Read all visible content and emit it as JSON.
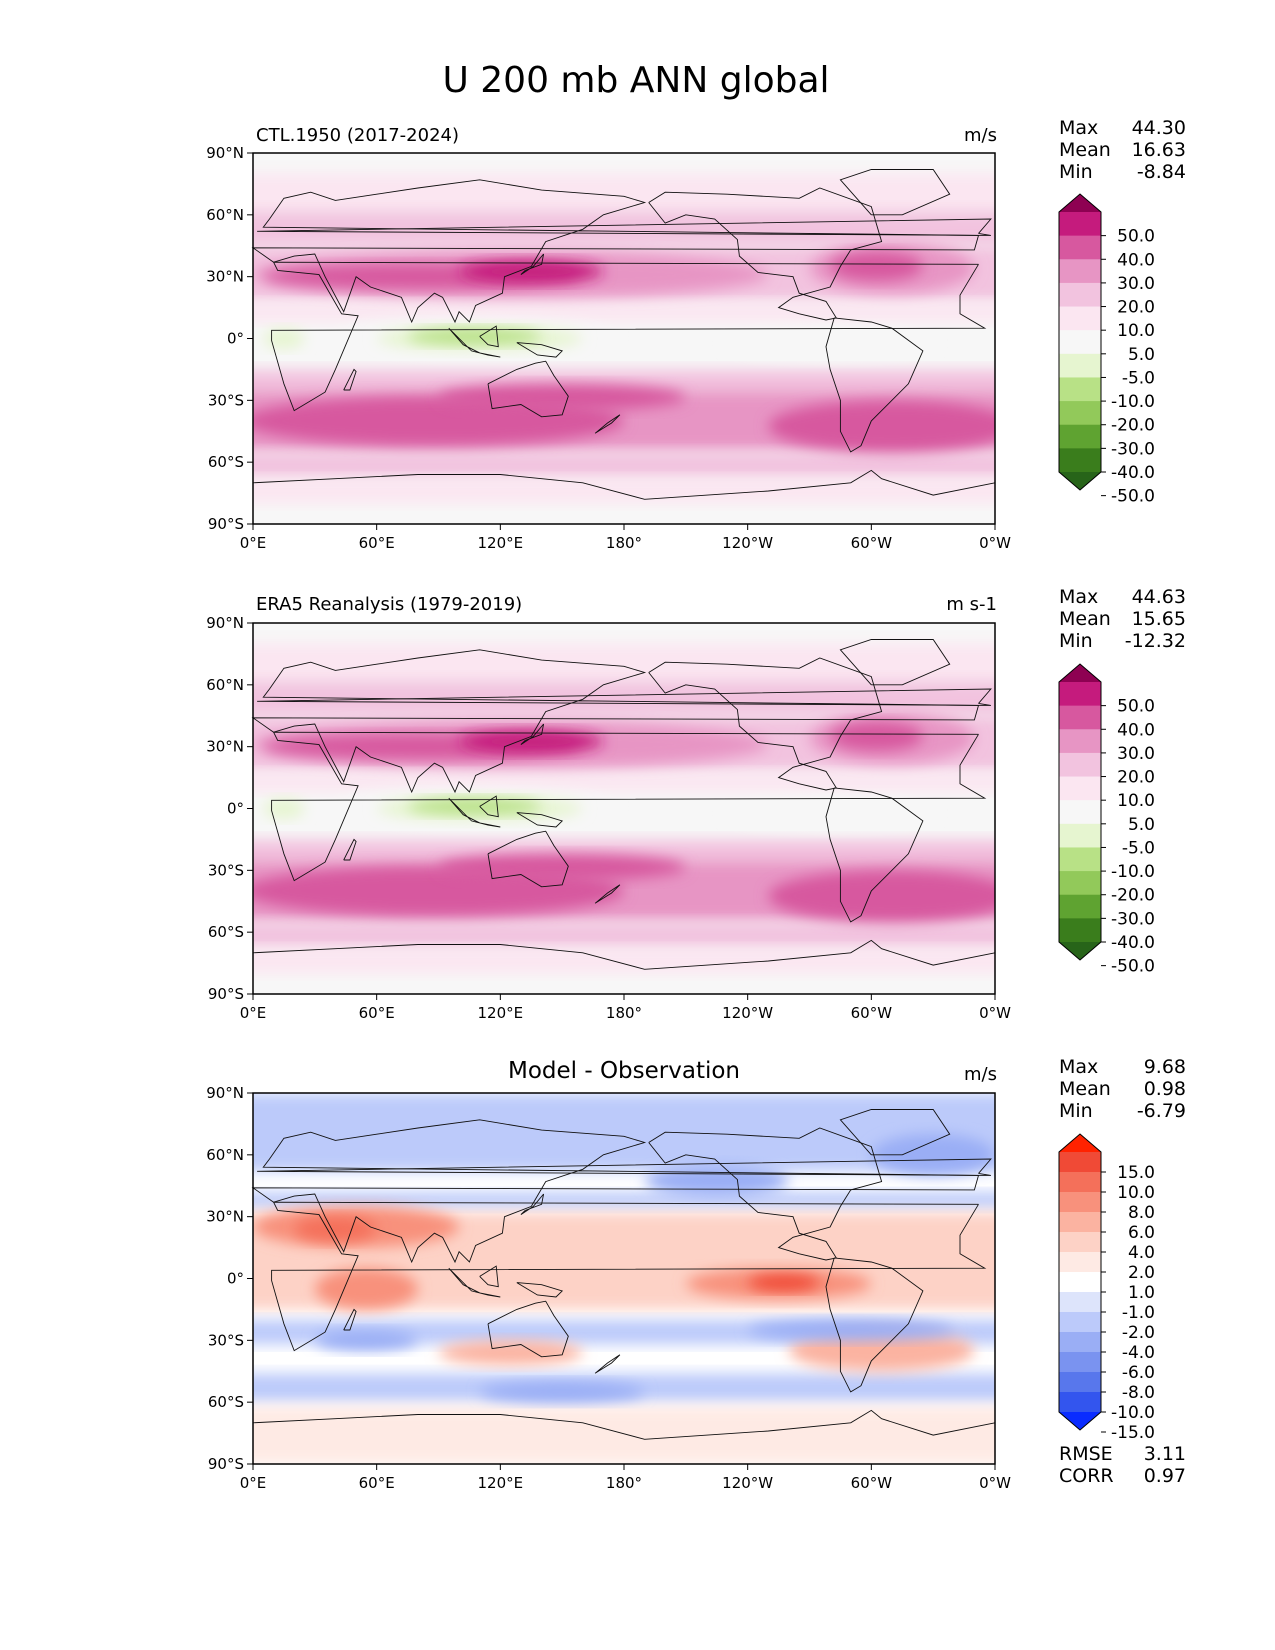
{
  "figure": {
    "title": "U 200 mb ANN global"
  },
  "x_ticks": [
    "0°E",
    "60°E",
    "120°E",
    "180°",
    "120°W",
    "60°W",
    "0°W"
  ],
  "y_ticks": [
    "90°N",
    "60°N",
    "30°N",
    "0°",
    "30°S",
    "60°S",
    "90°S"
  ],
  "panels": [
    {
      "title_left": "CTL.1950 (2017-2024)",
      "title_center": "",
      "units": "m/s",
      "stats": {
        "labels": [
          "Max",
          "Mean",
          "Min"
        ],
        "values": [
          "44.30",
          "16.63",
          "-8.84"
        ]
      },
      "colorbar": {
        "levels": [
          "50.0",
          "40.0",
          "30.0",
          "20.0",
          "10.0",
          "5.0",
          "-5.0",
          "-10.0",
          "-20.0",
          "-30.0",
          "-40.0",
          "-50.0"
        ],
        "colors": [
          "#8e0152",
          "#c51b7d",
          "#d7589f",
          "#e795c4",
          "#f2c3df",
          "#fbe6f1",
          "#f7f7f7",
          "#e6f5d0",
          "#b8e186",
          "#92c95a",
          "#5fa331",
          "#3a7d1c",
          "#276419"
        ]
      },
      "field": "ctl"
    },
    {
      "title_left": "ERA5 Reanalysis (1979-2019)",
      "title_center": "",
      "units": "m s-1",
      "stats": {
        "labels": [
          "Max",
          "Mean",
          "Min"
        ],
        "values": [
          "44.63",
          "15.65",
          "-12.32"
        ]
      },
      "colorbar": {
        "levels": [
          "50.0",
          "40.0",
          "30.0",
          "20.0",
          "10.0",
          "5.0",
          "-5.0",
          "-10.0",
          "-20.0",
          "-30.0",
          "-40.0",
          "-50.0"
        ],
        "colors": [
          "#8e0152",
          "#c51b7d",
          "#d7589f",
          "#e795c4",
          "#f2c3df",
          "#fbe6f1",
          "#f7f7f7",
          "#e6f5d0",
          "#b8e186",
          "#92c95a",
          "#5fa331",
          "#3a7d1c",
          "#276419"
        ]
      },
      "field": "obs"
    },
    {
      "title_left": "",
      "title_center": "Model - Observation",
      "units": "m/s",
      "stats": {
        "labels": [
          "Max",
          "Mean",
          "Min"
        ],
        "values": [
          "9.68",
          "0.98",
          "-6.79"
        ]
      },
      "colorbar": {
        "levels": [
          "15.0",
          "10.0",
          "8.0",
          "6.0",
          "4.0",
          "2.0",
          "1.0",
          "-1.0",
          "-2.0",
          "-4.0",
          "-6.0",
          "-8.0",
          "-10.0",
          "-15.0"
        ],
        "colors": [
          "#ff2200",
          "#f04a36",
          "#f4705a",
          "#f8917c",
          "#fbb3a1",
          "#fdd2c6",
          "#feeae4",
          "#ffffff",
          "#dde4fb",
          "#bccafa",
          "#9aaef5",
          "#7a93f0",
          "#5877ec",
          "#3355ee",
          "#0a2cff"
        ]
      },
      "extra_stats": {
        "labels": [
          "RMSE",
          "CORR"
        ],
        "values": [
          "3.11",
          "0.97"
        ]
      },
      "field": "diff"
    }
  ]
}
